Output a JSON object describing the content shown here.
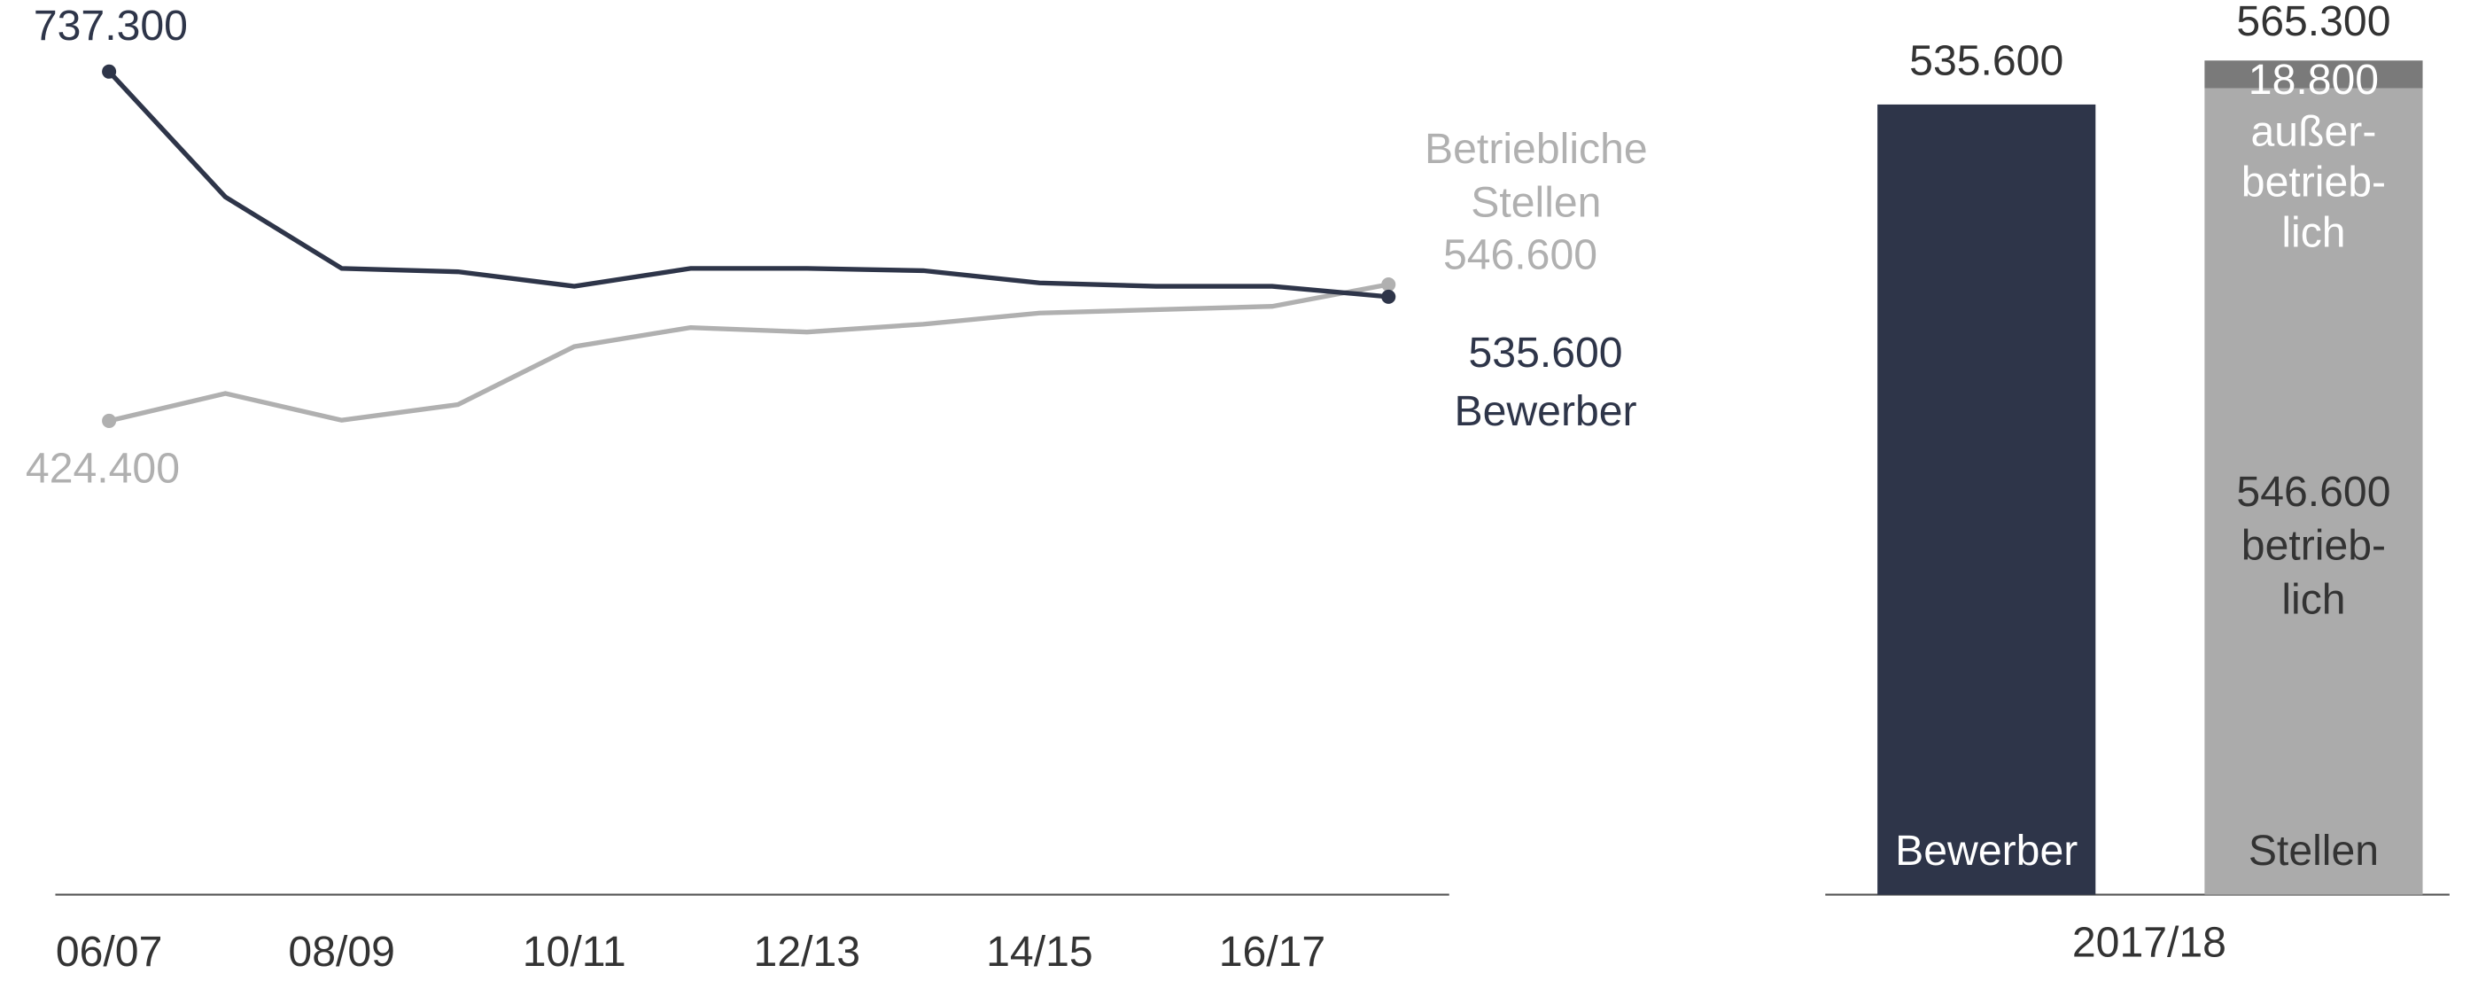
{
  "chart_data": [
    {
      "type": "line",
      "categories": [
        "06/07",
        null,
        "08/09",
        null,
        "10/11",
        null,
        "12/13",
        null,
        "14/15",
        null,
        "16/17",
        null
      ],
      "ylim": [
        0,
        800
      ],
      "series": [
        {
          "name_lines": [
            "Bewerber"
          ],
          "color": "#2e3549",
          "values": [
            737.3,
            625,
            561,
            558,
            545,
            561,
            561,
            559,
            548,
            545,
            545,
            535.6
          ],
          "value_labels": [
            "737.300",
            null,
            null,
            null,
            null,
            null,
            null,
            null,
            null,
            null,
            null,
            "535.600"
          ]
        },
        {
          "name_lines": [
            "Betriebliche",
            "Stellen"
          ],
          "color": "#b0b0b0",
          "values": [
            424.4,
            449,
            425,
            439,
            491,
            508,
            504,
            511,
            521,
            524,
            527,
            546.6
          ],
          "value_labels": [
            "424.400",
            null,
            null,
            null,
            null,
            null,
            null,
            null,
            null,
            null,
            null,
            "546.600"
          ]
        }
      ]
    },
    {
      "type": "stacked_bar",
      "xlabel": "2017/18",
      "ylim": [
        0,
        600
      ],
      "bars": [
        {
          "label": "Bewerber",
          "segments": [
            {
              "value": 535.6,
              "value_label": "535.600",
              "color": "#2e3549"
            }
          ]
        },
        {
          "label": "Stellen",
          "total": 565.3,
          "total_label": "565.300",
          "segments": [
            {
              "value": 546.6,
              "value_label": "546.600",
              "name_lines": [
                "betrieb-",
                "lich"
              ],
              "color": "#ababab"
            },
            {
              "value": 18.8,
              "value_label": "18.800",
              "name_lines": [
                "außer-",
                "betrieb-",
                "lich"
              ],
              "color": "#7a7a7a"
            }
          ]
        }
      ]
    }
  ]
}
